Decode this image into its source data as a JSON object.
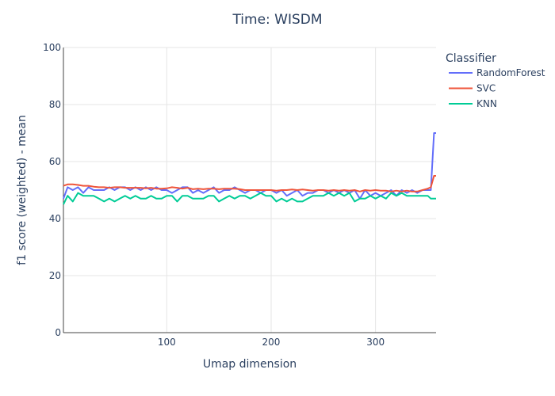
{
  "chart_data": {
    "type": "line",
    "title": "Time: WISDM",
    "xlabel": "Umap dimension",
    "ylabel": "f1 score (weighted) - mean",
    "xlim": [
      1,
      358
    ],
    "ylim": [
      0,
      100
    ],
    "xticks": [
      100,
      200,
      300
    ],
    "yticks": [
      0,
      20,
      40,
      60,
      80,
      100
    ],
    "grid": true,
    "legend_title": "Classifier",
    "legend_position": "top-right",
    "series": [
      {
        "name": "RandomForest",
        "color": "#636efa",
        "x": [
          1,
          5,
          10,
          15,
          20,
          25,
          30,
          35,
          40,
          45,
          50,
          55,
          60,
          65,
          70,
          75,
          80,
          85,
          90,
          95,
          100,
          105,
          110,
          115,
          120,
          125,
          130,
          135,
          140,
          145,
          150,
          155,
          160,
          165,
          170,
          175,
          180,
          185,
          190,
          195,
          200,
          205,
          210,
          215,
          220,
          225,
          230,
          235,
          240,
          245,
          250,
          255,
          260,
          265,
          270,
          275,
          280,
          285,
          290,
          295,
          300,
          305,
          310,
          315,
          320,
          325,
          330,
          335,
          340,
          345,
          350,
          353,
          356,
          358
        ],
        "y": [
          47,
          51,
          50,
          51,
          49,
          51,
          50,
          50,
          50,
          51,
          50,
          51,
          51,
          50,
          51,
          50,
          51,
          50,
          51,
          50,
          50,
          49,
          50,
          51,
          51,
          49,
          50,
          49,
          50,
          51,
          49,
          50,
          50,
          51,
          50,
          49,
          50,
          50,
          49,
          50,
          50,
          49,
          50,
          48,
          49,
          50,
          48,
          49,
          49,
          50,
          50,
          49,
          50,
          49,
          50,
          49,
          50,
          47,
          50,
          48,
          49,
          48,
          49,
          50,
          48,
          50,
          49,
          50,
          49,
          50,
          50,
          50,
          70,
          70
        ]
      },
      {
        "name": "SVC",
        "color": "#ef553b",
        "x": [
          1,
          5,
          10,
          15,
          20,
          25,
          30,
          35,
          40,
          45,
          50,
          55,
          60,
          65,
          70,
          75,
          80,
          85,
          90,
          95,
          100,
          105,
          110,
          115,
          120,
          125,
          130,
          135,
          140,
          145,
          150,
          155,
          160,
          165,
          170,
          175,
          180,
          185,
          190,
          195,
          200,
          205,
          210,
          215,
          220,
          225,
          230,
          235,
          240,
          245,
          250,
          255,
          260,
          265,
          270,
          275,
          280,
          285,
          290,
          295,
          300,
          305,
          310,
          315,
          320,
          325,
          330,
          335,
          340,
          345,
          350,
          353,
          356,
          358
        ],
        "y": [
          51.5,
          52,
          52,
          51.8,
          51.5,
          51.5,
          51.2,
          51,
          51,
          50.8,
          51,
          51,
          50.8,
          50.8,
          50.8,
          50.8,
          50.6,
          50.8,
          50.5,
          50.5,
          50.6,
          51,
          50.8,
          50.5,
          50.8,
          50.3,
          50.5,
          50.3,
          50.5,
          50.5,
          50.3,
          50.5,
          50.5,
          50.5,
          50.3,
          50,
          50,
          50,
          50,
          50,
          50,
          49.8,
          50,
          50,
          50.2,
          50,
          50.2,
          50,
          49.8,
          50,
          50,
          49.8,
          50,
          49.8,
          50,
          49.8,
          50,
          49.5,
          50,
          49.8,
          50,
          49.8,
          49.8,
          49.5,
          49.8,
          49.5,
          49.8,
          49.5,
          49.5,
          50,
          50.5,
          51,
          55,
          55
        ]
      },
      {
        "name": "KNN",
        "color": "#00cc96",
        "x": [
          1,
          5,
          10,
          15,
          20,
          25,
          30,
          35,
          40,
          45,
          50,
          55,
          60,
          65,
          70,
          75,
          80,
          85,
          90,
          95,
          100,
          105,
          110,
          115,
          120,
          125,
          130,
          135,
          140,
          145,
          150,
          155,
          160,
          165,
          170,
          175,
          180,
          185,
          190,
          195,
          200,
          205,
          210,
          215,
          220,
          225,
          230,
          235,
          240,
          245,
          250,
          255,
          260,
          265,
          270,
          275,
          280,
          285,
          290,
          295,
          300,
          305,
          310,
          315,
          320,
          325,
          330,
          335,
          340,
          345,
          350,
          353,
          356,
          358
        ],
        "y": [
          45,
          48,
          46,
          49,
          48,
          48,
          48,
          47,
          46,
          47,
          46,
          47,
          48,
          47,
          48,
          47,
          47,
          48,
          47,
          47,
          48,
          48,
          46,
          48,
          48,
          47,
          47,
          47,
          48,
          48,
          46,
          47,
          48,
          47,
          48,
          48,
          47,
          48,
          49,
          48,
          48,
          46,
          47,
          46,
          47,
          46,
          46,
          47,
          48,
          48,
          48,
          49,
          48,
          49,
          48,
          49,
          46,
          47,
          47,
          48,
          47,
          48,
          47,
          49,
          48,
          49,
          48,
          48,
          48,
          48,
          48,
          47,
          47,
          47
        ]
      }
    ]
  }
}
